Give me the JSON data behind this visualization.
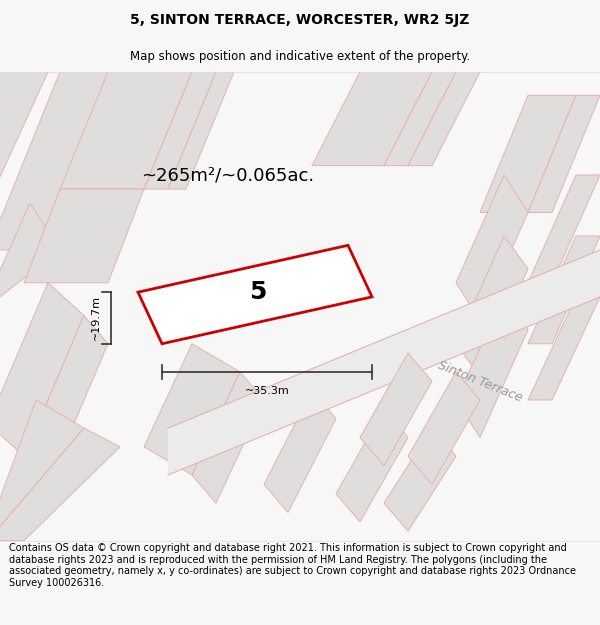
{
  "title": "5, SINTON TERRACE, WORCESTER, WR2 5JZ",
  "subtitle": "Map shows position and indicative extent of the property.",
  "footer": "Contains OS data © Crown copyright and database right 2021. This information is subject to Crown copyright and database rights 2023 and is reproduced with the permission of HM Land Registry. The polygons (including the associated geometry, namely x, y co-ordinates) are subject to Crown copyright and database rights 2023 Ordnance Survey 100026316.",
  "area_text": "~265m²/~0.065ac.",
  "property_number": "5",
  "dim_width": "~35.3m",
  "dim_height": "~19.7m",
  "bg_color": "#f7f7f7",
  "map_bg": "#f7f7f7",
  "property_fill": "#ffffff",
  "property_edge": "#cc0000",
  "road_text": "Sinton Terrace",
  "bldg_fill": "#e0dedd",
  "bldg_edge": "#e8b0b0",
  "line_color": "#e8b0b0",
  "dim_color": "#333333",
  "title_fontsize": 10,
  "subtitle_fontsize": 8.5,
  "footer_fontsize": 7,
  "area_fontsize": 13,
  "number_fontsize": 18,
  "road_fontsize": 9
}
